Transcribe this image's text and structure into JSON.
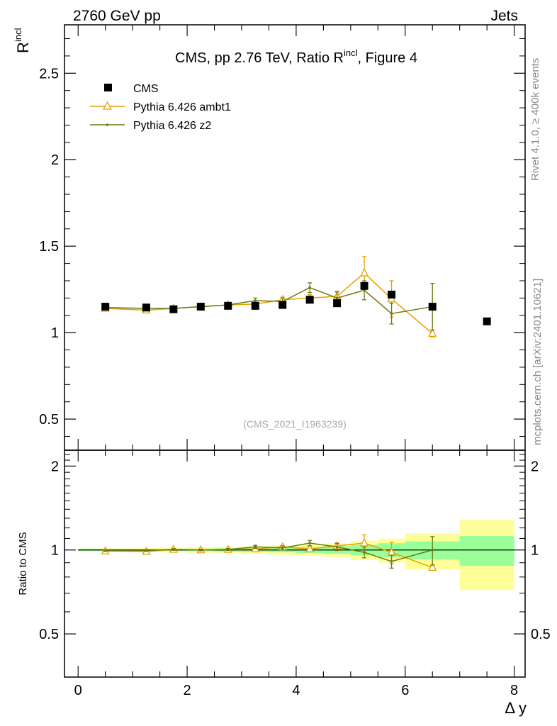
{
  "header": {
    "left": "2760 GeV pp",
    "right": "Jets"
  },
  "side_labels": {
    "rivet": "Rivet 4.1.0, ≥ 400k events",
    "mcplots": "mcplots.cern.ch [arXiv:2401.10621]"
  },
  "chart_data": {
    "type": "scatter",
    "title": "CMS, pp 2.76 TeV, Ratio R",
    "title_superscript": "incl",
    "title_suffix": ", Figure 4",
    "analysis_id": "(CMS_2021_I1963239)",
    "ylabel": "R",
    "ylabel_superscript": "incl",
    "xlabel": "Δ y",
    "ratio_ylabel": "Ratio to CMS",
    "xlim": [
      -0.25,
      8.2
    ],
    "ylim": [
      0.32,
      2.78
    ],
    "ratio_ylim": [
      0.35,
      2.28
    ],
    "colors": {
      "data": "#000000",
      "ambt1": "#e8a000",
      "z2": "#6b7a10",
      "band_inner": "#99ff99",
      "band_outer": "#ffff99"
    },
    "main_x_ticks": [],
    "main_y_ticks": [
      "0.5",
      "1",
      "1.5",
      "2",
      "2.5"
    ],
    "main_y_tick_values": [
      0.5,
      1,
      1.5,
      2,
      2.5
    ],
    "ratio_y_ticks": [
      "0.5",
      "1",
      "2"
    ],
    "ratio_y_tick_values": [
      0.5,
      1,
      2
    ],
    "ratio_y_ticks_right": [
      "0.5",
      "1",
      "2"
    ],
    "x_ticks": [
      "0",
      "2",
      "4",
      "6",
      "8"
    ],
    "x_tick_values": [
      0,
      2,
      4,
      6,
      8
    ],
    "legend": [
      "CMS",
      "Pythia 6.426 ambt1",
      "Pythia 6.426 z2"
    ],
    "bins": [
      {
        "lo": 0.0,
        "hi": 1.0
      },
      {
        "lo": 1.0,
        "hi": 1.5
      },
      {
        "lo": 1.5,
        "hi": 2.0
      },
      {
        "lo": 2.0,
        "hi": 2.5
      },
      {
        "lo": 2.5,
        "hi": 3.0
      },
      {
        "lo": 3.0,
        "hi": 3.5
      },
      {
        "lo": 3.5,
        "hi": 4.0
      },
      {
        "lo": 4.0,
        "hi": 4.5
      },
      {
        "lo": 4.5,
        "hi": 5.0
      },
      {
        "lo": 5.0,
        "hi": 5.5
      },
      {
        "lo": 5.5,
        "hi": 6.0
      },
      {
        "lo": 6.0,
        "hi": 7.0
      },
      {
        "lo": 7.0,
        "hi": 8.0
      }
    ],
    "series": [
      {
        "name": "CMS",
        "x": [
          0.5,
          1.25,
          1.75,
          2.25,
          2.75,
          3.25,
          3.75,
          4.25,
          4.75,
          5.25,
          5.75,
          6.5,
          7.5
        ],
        "y": [
          1.15,
          1.145,
          1.135,
          1.15,
          1.155,
          1.155,
          1.16,
          1.19,
          1.17,
          1.27,
          1.22,
          1.15,
          1.065
        ],
        "band_inner": [
          0.01,
          0.01,
          0.01,
          0.012,
          0.015,
          0.018,
          0.022,
          0.03,
          0.037,
          0.055,
          0.07,
          0.085,
          0.13
        ],
        "band_outer": [
          0.015,
          0.017,
          0.02,
          0.024,
          0.028,
          0.035,
          0.045,
          0.055,
          0.065,
          0.1,
          0.12,
          0.17,
          0.3
        ]
      },
      {
        "name": "Pythia 6.426 ambt1",
        "x": [
          0.5,
          1.25,
          1.75,
          2.25,
          2.75,
          3.25,
          3.75,
          4.25,
          4.75,
          5.25,
          5.75,
          6.5
        ],
        "y": [
          1.14,
          1.13,
          1.14,
          1.15,
          1.16,
          1.165,
          1.19,
          1.2,
          1.21,
          1.345,
          1.195,
          0.995
        ],
        "err": [
          0.008,
          0.008,
          0.008,
          0.008,
          0.01,
          0.012,
          0.015,
          0.02,
          0.03,
          0.095,
          0.105,
          0.02
        ]
      },
      {
        "name": "Pythia 6.426 z2",
        "x": [
          0.5,
          1.25,
          1.75,
          2.25,
          2.75,
          3.25,
          3.75,
          4.25,
          4.75,
          5.25,
          5.75,
          6.5
        ],
        "y": [
          1.145,
          1.14,
          1.14,
          1.15,
          1.16,
          1.185,
          1.18,
          1.26,
          1.2,
          1.245,
          1.11,
          1.15
        ],
        "err": [
          0.008,
          0.008,
          0.008,
          0.008,
          0.01,
          0.015,
          0.02,
          0.028,
          0.035,
          0.055,
          0.06,
          0.135
        ]
      }
    ]
  }
}
